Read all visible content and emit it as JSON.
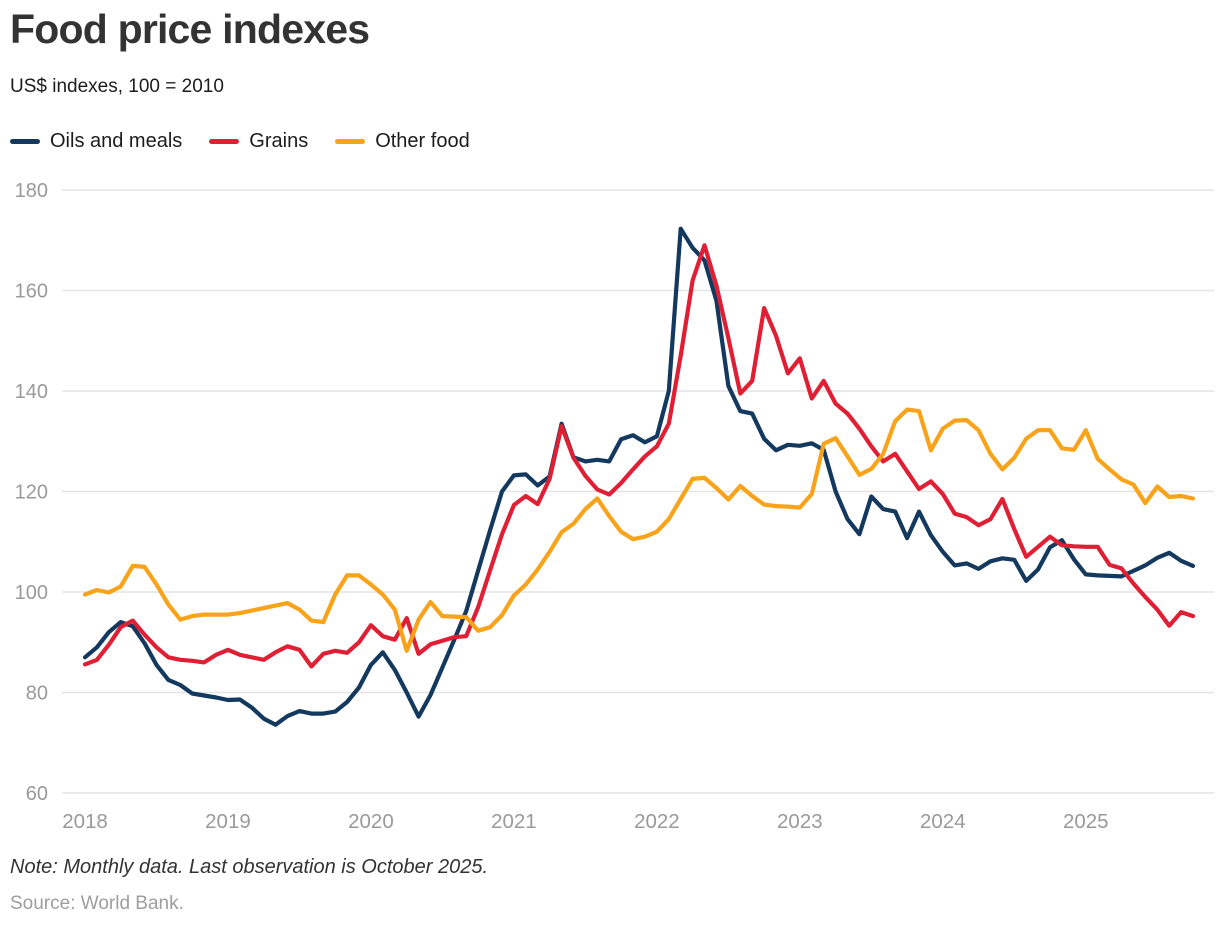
{
  "page": {
    "title": "Food price indexes",
    "subtitle": "US$ indexes, 100 = 2010",
    "note": "Note: Monthly data. Last observation is October 2025.",
    "source": "Source: World Bank."
  },
  "colors": {
    "oils_and_meals": "#14395e",
    "grains": "#e01f35",
    "other_food": "#f8a31a",
    "grid": "#e4e4e4",
    "axis_text": "#9a9a9a"
  },
  "chart_data": {
    "type": "line",
    "title": "Food price indexes",
    "subtitle": "US$ indexes, 100 = 2010",
    "x_unit": "month",
    "x_start": "2018-01",
    "x_end": "2025-10",
    "x_tick_labels": [
      "2018",
      "2019",
      "2020",
      "2021",
      "2022",
      "2023",
      "2024",
      "2025"
    ],
    "ylim": [
      60,
      180
    ],
    "y_ticks": [
      60,
      80,
      100,
      120,
      140,
      160,
      180
    ],
    "grid": true,
    "legend_position": "top",
    "series": [
      {
        "name": "Oils and meals",
        "color": "#14395e",
        "values": [
          87,
          89,
          92,
          94,
          93.2,
          89.8,
          85.5,
          82.5,
          81.5,
          79.8,
          79.4,
          79,
          78.5,
          78.6,
          77,
          74.8,
          73.6,
          75.3,
          76.3,
          75.8,
          75.8,
          76.2,
          78.1,
          81,
          85.5,
          88,
          84.5,
          80,
          75.2,
          79.5,
          85,
          90.5,
          96.2,
          104.3,
          112.3,
          120,
          123.2,
          123.4,
          121.2,
          123,
          133.5,
          126.8,
          126,
          126.3,
          126,
          130.4,
          131.2,
          129.8,
          131,
          140,
          172.3,
          168.5,
          166,
          158,
          141,
          136,
          135.5,
          130.5,
          128.2,
          129.3,
          129.1,
          129.6,
          128.3,
          120,
          114.5,
          111.5,
          119,
          116.5,
          116,
          110.7,
          116,
          111.3,
          108,
          105.3,
          105.7,
          104.6,
          106.1,
          106.7,
          106.4,
          102.2,
          104.5,
          108.9,
          110.3,
          106.5,
          103.5,
          103.3,
          103.2,
          103.1,
          104.2,
          105.3,
          106.8,
          107.8,
          106.2,
          105.2
        ]
      },
      {
        "name": "Grains",
        "color": "#e01f35",
        "values": [
          85.6,
          86.5,
          89.5,
          93,
          94.3,
          91.5,
          89,
          87,
          86.5,
          86.3,
          86,
          87.5,
          88.5,
          87.5,
          87,
          86.5,
          88,
          89.2,
          88.5,
          85.2,
          87.7,
          88.3,
          87.9,
          90,
          93.4,
          91.2,
          90.5,
          94.8,
          87.7,
          89.6,
          90.3,
          91,
          91.2,
          97,
          104.3,
          111.5,
          117.3,
          119.1,
          117.5,
          122.5,
          133,
          126.7,
          123.1,
          120.4,
          119.4,
          121.7,
          124.4,
          127,
          129,
          133.5,
          147,
          162,
          169,
          161,
          150.5,
          139.5,
          142,
          156.5,
          151,
          143.5,
          146.5,
          138.5,
          142,
          137.5,
          135.5,
          132.5,
          129,
          126,
          127.5,
          124,
          120.5,
          122,
          119.5,
          115.6,
          114.9,
          113.3,
          114.5,
          118.5,
          112.5,
          107,
          109,
          111,
          109.3,
          109.1,
          109,
          109,
          105.4,
          104.7,
          101.7,
          99,
          96.5,
          93.3,
          96,
          95.2
        ]
      },
      {
        "name": "Other food",
        "color": "#f8a31a",
        "values": [
          99.5,
          100.4,
          99.9,
          101.1,
          105.2,
          105,
          101.5,
          97.5,
          94.5,
          95.2,
          95.5,
          95.5,
          95.5,
          95.8,
          96.3,
          96.8,
          97.3,
          97.8,
          96.5,
          94.3,
          94,
          99.5,
          103.3,
          103.3,
          101.5,
          99.5,
          96.5,
          88.3,
          94.5,
          98,
          95.2,
          95.1,
          95,
          92.3,
          93,
          95.4,
          99.3,
          101.5,
          104.5,
          108,
          111.9,
          113.6,
          116.5,
          118.6,
          115.1,
          112,
          110.5,
          111,
          112,
          114.5,
          118.5,
          122.5,
          122.7,
          120.7,
          118.4,
          121.1,
          119.1,
          117.4,
          117.1,
          117,
          116.8,
          119.5,
          129.5,
          130.6,
          127,
          123.3,
          124.5,
          127.5,
          134,
          136.3,
          136,
          128.2,
          132.5,
          134.1,
          134.2,
          132.2,
          127.5,
          124.4,
          126.7,
          130.5,
          132.2,
          132.2,
          128.6,
          128.3,
          132.2,
          126.5,
          124.4,
          122.4,
          121.4,
          117.7,
          121,
          118.9,
          119.1,
          118.6
        ]
      }
    ]
  }
}
